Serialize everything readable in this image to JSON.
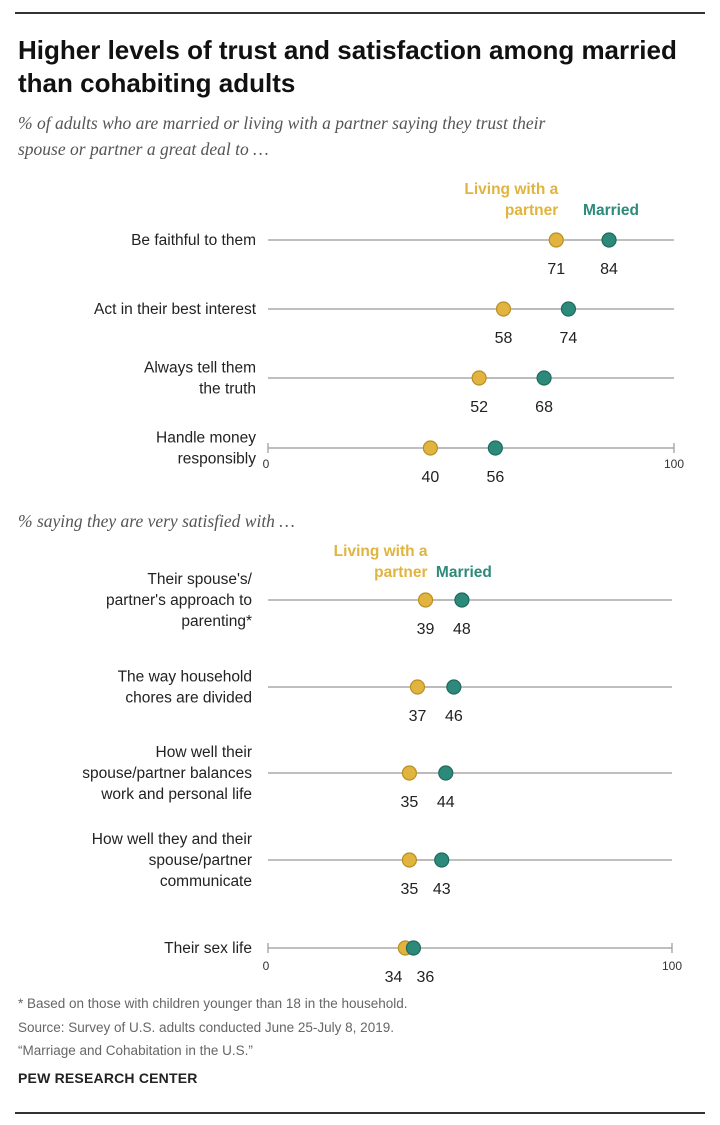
{
  "title_lines": [
    "Higher levels of trust and satisfaction among married",
    "than cohabiting adults"
  ],
  "colors": {
    "married": "#2d8a7b",
    "cohabiting": "#e0b43e",
    "line": "#999999"
  },
  "chart_data": [
    {
      "type": "dot",
      "subtitle_lines": [
        "% of adults who are married or living with a partner saying they trust their",
        "spouse or partner a great deal to …"
      ],
      "xlim": [
        0,
        100
      ],
      "tick_labels": [
        "0",
        "100"
      ],
      "legend": {
        "cohabiting_lines": [
          "Living with a",
          "partner"
        ],
        "married": "Married"
      },
      "categories": [
        {
          "label_lines": [
            "Be faithful to them"
          ],
          "cohabiting": 71,
          "married": 84
        },
        {
          "label_lines": [
            "Act in their best interest"
          ],
          "cohabiting": 58,
          "married": 74
        },
        {
          "label_lines": [
            "Always tell them",
            "the truth"
          ],
          "cohabiting": 52,
          "married": 68
        },
        {
          "label_lines": [
            "Handle money",
            "responsibly"
          ],
          "cohabiting": 40,
          "married": 56
        }
      ]
    },
    {
      "type": "dot",
      "subtitle_lines": [
        "% saying they are very satisfied with …"
      ],
      "xlim": [
        0,
        100
      ],
      "tick_labels": [
        "0",
        "100"
      ],
      "legend": {
        "cohabiting_lines": [
          "Living with a",
          "partner"
        ],
        "married": "Married"
      },
      "categories": [
        {
          "label_lines": [
            "Their spouse's/",
            "partner's approach to",
            "parenting*"
          ],
          "cohabiting": 39,
          "married": 48
        },
        {
          "label_lines": [
            "The way household",
            "chores are divided"
          ],
          "cohabiting": 37,
          "married": 46
        },
        {
          "label_lines": [
            "How well their",
            "spouse/partner balances",
            "work and personal life"
          ],
          "cohabiting": 35,
          "married": 44
        },
        {
          "label_lines": [
            "How well they and their",
            "spouse/partner",
            "communicate"
          ],
          "cohabiting": 35,
          "married": 43
        },
        {
          "label_lines": [
            "Their sex life"
          ],
          "cohabiting": 34,
          "married": 36
        }
      ]
    }
  ],
  "notes": [
    "* Based on those with children younger than 18 in the household.",
    "Source: Survey of U.S. adults conducted June 25-July 8, 2019.",
    "“Marriage and Cohabitation in the U.S.”"
  ],
  "brand": "PEW RESEARCH CENTER"
}
